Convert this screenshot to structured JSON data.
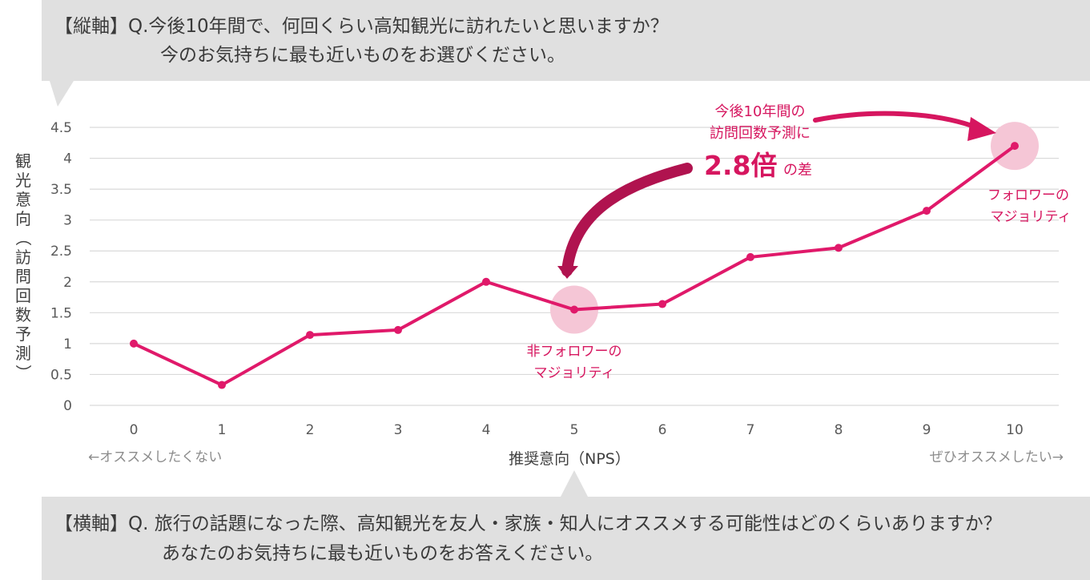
{
  "top_question": {
    "line1": "【縦軸】Q.今後10年間で、何回くらい高知観光に訪れたいと思いますか？",
    "line2": "今のお気持ちに最も近いものをお選びください。"
  },
  "bottom_question": {
    "line1": "【横軸】Q. 旅行の話題になった際、高知観光を友人・家族・知人にオススメする可能性はどのくらいありますか？",
    "line2": "あなたのお気持ちに最も近いものをお答えください。"
  },
  "chart_data": {
    "type": "line",
    "x": [
      0,
      1,
      2,
      3,
      4,
      5,
      6,
      7,
      8,
      9,
      10
    ],
    "series": [
      {
        "values": [
          1.0,
          0.33,
          1.14,
          1.22,
          2.0,
          1.55,
          1.64,
          2.4,
          2.55,
          3.15,
          4.2
        ]
      }
    ],
    "ylabel": "観光意向（訪問回数予測）",
    "xlabel": "推奨意向（NPS）",
    "x_ticks": [
      "0",
      "1",
      "2",
      "3",
      "4",
      "5",
      "6",
      "7",
      "8",
      "9",
      "10"
    ],
    "y_ticks": [
      "0",
      "0.5",
      "1",
      "1.5",
      "2",
      "2.5",
      "3",
      "3.5",
      "4",
      "4.5"
    ],
    "ylim": [
      0,
      4.5
    ],
    "xlim": [
      0,
      10
    ],
    "grid": true,
    "x_left_note": "←オススメしたくない",
    "x_right_note": "ぜひオススメしたい→",
    "annotations": {
      "non_follower": {
        "line1": "非フォロワーの",
        "line2": "マジョリティ",
        "x": 5
      },
      "follower": {
        "line1": "フォロワーの",
        "line2": "マジョリティ",
        "x": 10
      },
      "gap": {
        "line1": "今後10年間の",
        "line2": "訪問回数予測に",
        "big": "2.8倍",
        "suffix": "の差"
      }
    },
    "colors": {
      "line": "#e0196a",
      "highlight": "#f5c6d6",
      "gridline": "#d9d9d9",
      "bubble": "#e0e0e0"
    }
  }
}
